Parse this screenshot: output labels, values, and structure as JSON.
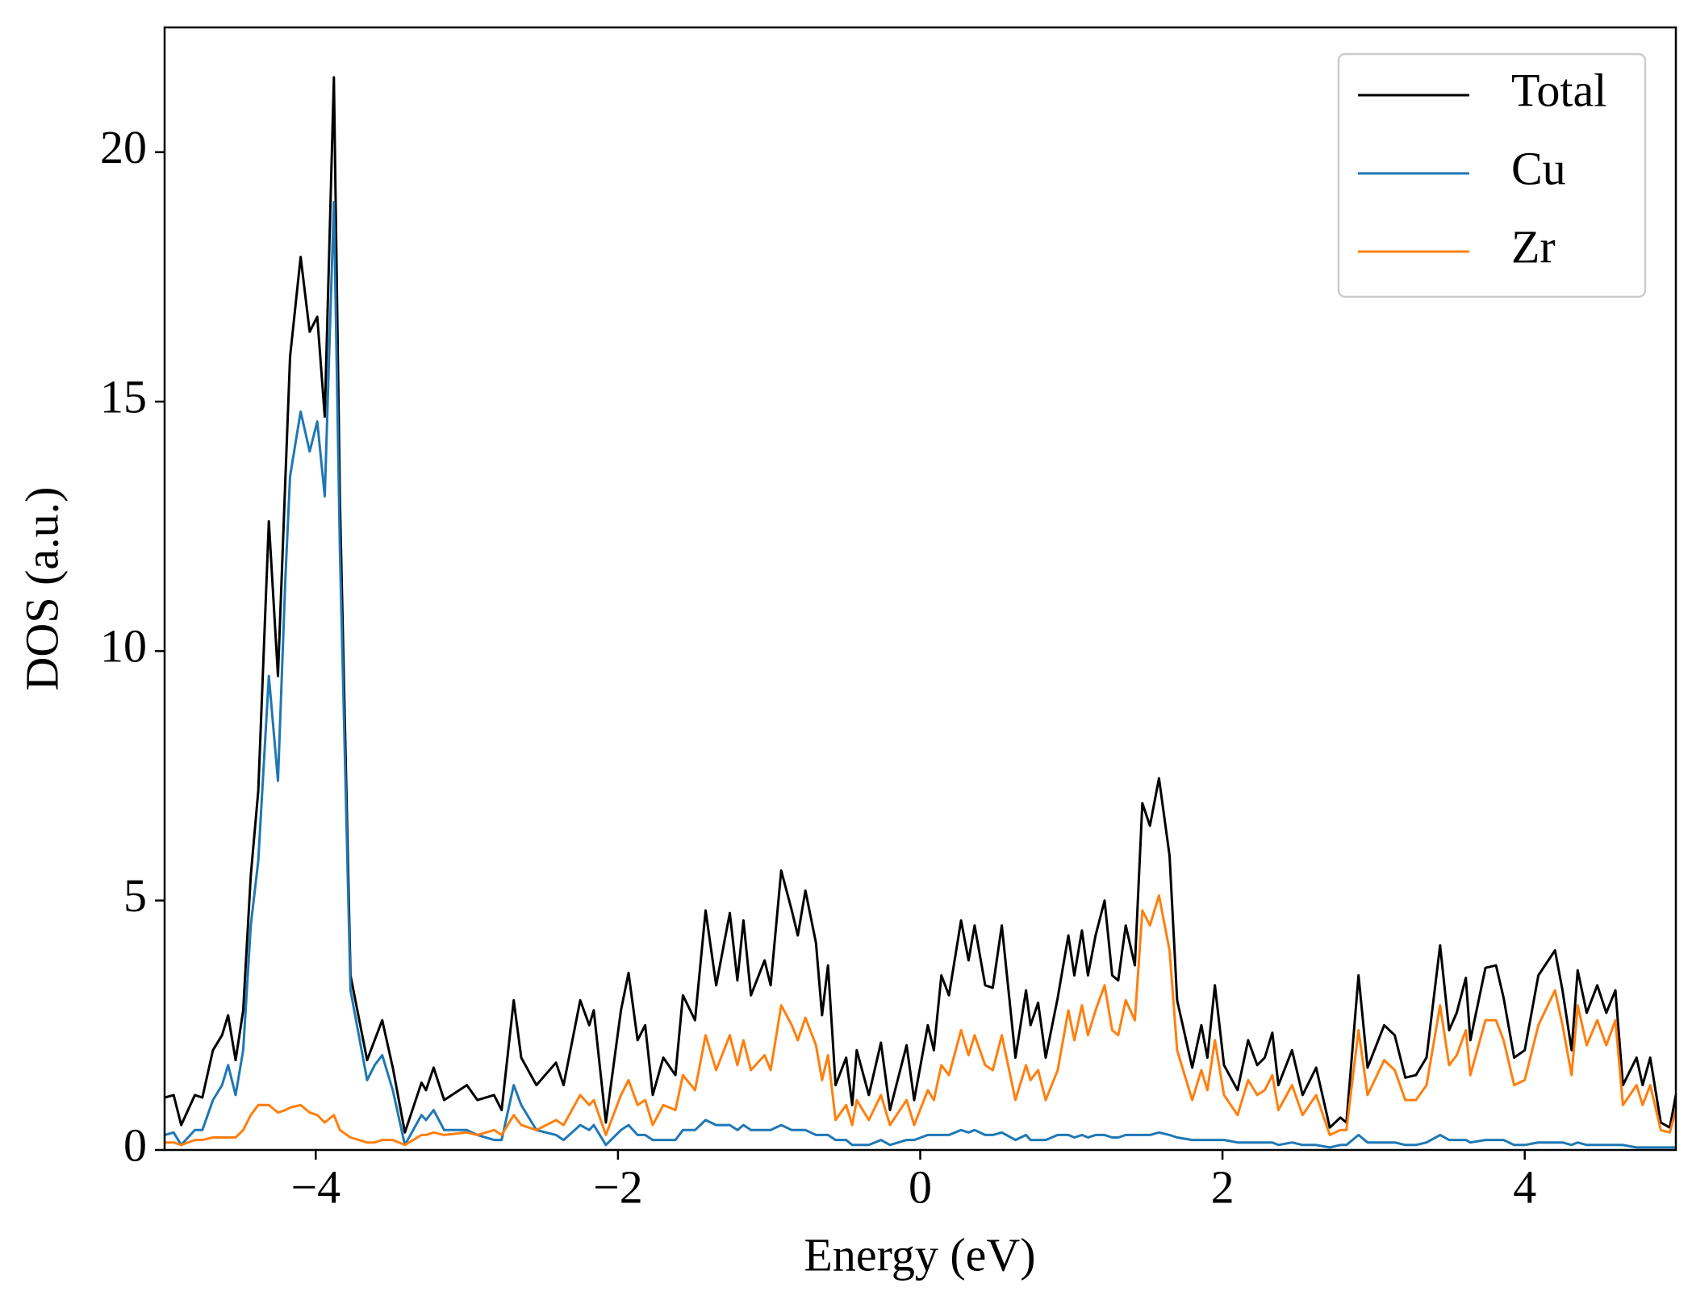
{
  "chart_data": {
    "type": "line",
    "xlabel": "Energy (eV)",
    "ylabel": "DOS (a.u.)",
    "x": [
      -5.0,
      -4.94,
      -4.89,
      -4.8,
      -4.75,
      -4.68,
      -4.62,
      -4.58,
      -4.53,
      -4.48,
      -4.43,
      -4.38,
      -4.31,
      -4.25,
      -4.2,
      -4.17,
      -4.1,
      -4.04,
      -3.99,
      -3.94,
      -3.88,
      -3.84,
      -3.77,
      -3.66,
      -3.61,
      -3.56,
      -3.49,
      -3.41,
      -3.3,
      -3.27,
      -3.22,
      -3.15,
      -3.0,
      -2.93,
      -2.82,
      -2.77,
      -2.69,
      -2.64,
      -2.54,
      -2.41,
      -2.36,
      -2.25,
      -2.19,
      -2.16,
      -2.08,
      -1.98,
      -1.93,
      -1.87,
      -1.82,
      -1.77,
      -1.7,
      -1.62,
      -1.57,
      -1.49,
      -1.42,
      -1.35,
      -1.26,
      -1.21,
      -1.17,
      -1.12,
      -1.03,
      -0.99,
      -0.92,
      -0.85,
      -0.81,
      -0.76,
      -0.69,
      -0.65,
      -0.61,
      -0.56,
      -0.49,
      -0.45,
      -0.42,
      -0.34,
      -0.26,
      -0.2,
      -0.09,
      -0.04,
      0.05,
      0.09,
      0.14,
      0.19,
      0.27,
      0.32,
      0.36,
      0.43,
      0.48,
      0.54,
      0.63,
      0.7,
      0.73,
      0.78,
      0.83,
      0.91,
      0.98,
      1.02,
      1.07,
      1.11,
      1.16,
      1.22,
      1.27,
      1.31,
      1.36,
      1.42,
      1.47,
      1.52,
      1.58,
      1.65,
      1.7,
      1.8,
      1.86,
      1.9,
      1.95,
      2.01,
      2.1,
      2.17,
      2.23,
      2.28,
      2.33,
      2.37,
      2.46,
      2.53,
      2.62,
      2.71,
      2.78,
      2.82,
      2.9,
      2.96,
      3.07,
      3.14,
      3.21,
      3.28,
      3.35,
      3.44,
      3.5,
      3.55,
      3.61,
      3.64,
      3.74,
      3.81,
      3.86,
      3.93,
      4.0,
      4.09,
      4.2,
      4.25,
      4.31,
      4.35,
      4.41,
      4.48,
      4.54,
      4.6,
      4.65,
      4.74,
      4.78,
      4.83,
      4.9,
      4.96,
      5.0
    ],
    "series": [
      {
        "name": "Total",
        "color": "#000000",
        "values": [
          1.05,
          1.1,
          0.5,
          1.1,
          1.05,
          2.0,
          2.3,
          2.7,
          1.8,
          2.8,
          5.5,
          7.2,
          12.6,
          9.5,
          13.5,
          15.9,
          17.9,
          16.4,
          16.7,
          14.7,
          21.5,
          13.0,
          3.5,
          1.8,
          2.2,
          2.6,
          1.65,
          0.35,
          1.35,
          1.2,
          1.65,
          1.0,
          1.3,
          1.0,
          1.1,
          0.8,
          3.0,
          1.85,
          1.3,
          1.75,
          1.3,
          3.0,
          2.5,
          2.8,
          0.55,
          2.8,
          3.55,
          2.2,
          2.5,
          1.1,
          1.85,
          1.5,
          3.1,
          2.6,
          4.8,
          3.3,
          4.75,
          3.4,
          4.6,
          3.1,
          3.8,
          3.3,
          5.6,
          4.8,
          4.3,
          5.2,
          4.15,
          2.7,
          3.7,
          1.3,
          1.85,
          0.9,
          2.0,
          1.1,
          2.15,
          0.8,
          2.1,
          1.0,
          2.5,
          2.0,
          3.5,
          3.1,
          4.6,
          3.8,
          4.5,
          3.3,
          3.25,
          4.5,
          1.85,
          3.2,
          2.5,
          2.95,
          1.85,
          3.05,
          4.3,
          3.5,
          4.4,
          3.5,
          4.3,
          5.0,
          3.5,
          3.4,
          4.5,
          3.7,
          6.95,
          6.5,
          7.45,
          5.9,
          3.0,
          1.65,
          2.5,
          1.85,
          3.3,
          1.7,
          1.2,
          2.2,
          1.7,
          1.85,
          2.35,
          1.3,
          2.0,
          1.1,
          1.65,
          0.45,
          0.65,
          0.55,
          3.5,
          1.65,
          2.5,
          2.3,
          1.45,
          1.5,
          1.85,
          4.1,
          2.4,
          2.75,
          3.45,
          2.2,
          3.65,
          3.7,
          3.05,
          1.85,
          2.0,
          3.5,
          4.0,
          3.2,
          2.0,
          3.6,
          2.75,
          3.3,
          2.75,
          3.2,
          1.3,
          1.85,
          1.3,
          1.85,
          0.55,
          0.45,
          1.1
        ]
      },
      {
        "name": "Cu",
        "color": "#1f77b4",
        "values": [
          0.3,
          0.35,
          0.1,
          0.4,
          0.4,
          1.0,
          1.3,
          1.7,
          1.1,
          2.0,
          4.5,
          5.8,
          9.5,
          7.4,
          11.5,
          13.5,
          14.8,
          14.0,
          14.6,
          13.1,
          19.0,
          12.0,
          3.2,
          1.4,
          1.7,
          1.9,
          1.2,
          0.1,
          0.7,
          0.6,
          0.8,
          0.4,
          0.4,
          0.3,
          0.2,
          0.2,
          1.3,
          0.9,
          0.4,
          0.3,
          0.2,
          0.5,
          0.4,
          0.5,
          0.1,
          0.4,
          0.5,
          0.3,
          0.3,
          0.2,
          0.2,
          0.2,
          0.4,
          0.4,
          0.6,
          0.5,
          0.5,
          0.4,
          0.5,
          0.4,
          0.4,
          0.4,
          0.5,
          0.4,
          0.4,
          0.4,
          0.3,
          0.3,
          0.3,
          0.2,
          0.2,
          0.1,
          0.1,
          0.1,
          0.2,
          0.1,
          0.2,
          0.2,
          0.3,
          0.3,
          0.3,
          0.3,
          0.4,
          0.35,
          0.4,
          0.3,
          0.3,
          0.35,
          0.2,
          0.3,
          0.2,
          0.2,
          0.2,
          0.3,
          0.3,
          0.25,
          0.3,
          0.25,
          0.3,
          0.3,
          0.25,
          0.25,
          0.3,
          0.3,
          0.3,
          0.3,
          0.35,
          0.3,
          0.25,
          0.2,
          0.2,
          0.2,
          0.2,
          0.2,
          0.15,
          0.15,
          0.15,
          0.15,
          0.15,
          0.1,
          0.15,
          0.1,
          0.1,
          0.05,
          0.1,
          0.1,
          0.3,
          0.15,
          0.15,
          0.15,
          0.1,
          0.1,
          0.15,
          0.3,
          0.2,
          0.2,
          0.2,
          0.15,
          0.2,
          0.2,
          0.2,
          0.1,
          0.1,
          0.15,
          0.15,
          0.15,
          0.1,
          0.15,
          0.1,
          0.1,
          0.1,
          0.1,
          0.1,
          0.05,
          0.05,
          0.05,
          0.05,
          0.05,
          0.05
        ]
      },
      {
        "name": "Zr",
        "color": "#ff7f0e",
        "values": [
          0.15,
          0.15,
          0.1,
          0.2,
          0.2,
          0.25,
          0.25,
          0.25,
          0.25,
          0.4,
          0.7,
          0.9,
          0.9,
          0.75,
          0.8,
          0.85,
          0.9,
          0.75,
          0.7,
          0.55,
          0.7,
          0.4,
          0.25,
          0.15,
          0.15,
          0.2,
          0.2,
          0.1,
          0.3,
          0.3,
          0.35,
          0.3,
          0.35,
          0.3,
          0.4,
          0.3,
          0.7,
          0.5,
          0.4,
          0.6,
          0.5,
          1.1,
          0.9,
          1.0,
          0.3,
          1.1,
          1.4,
          0.9,
          1.0,
          0.5,
          0.9,
          0.8,
          1.5,
          1.2,
          2.3,
          1.6,
          2.3,
          1.7,
          2.2,
          1.6,
          1.9,
          1.6,
          2.9,
          2.5,
          2.2,
          2.65,
          2.1,
          1.4,
          1.9,
          0.6,
          0.9,
          0.5,
          1.0,
          0.6,
          1.1,
          0.5,
          1.0,
          0.5,
          1.2,
          1.0,
          1.7,
          1.5,
          2.4,
          1.9,
          2.3,
          1.7,
          1.6,
          2.3,
          1.0,
          1.7,
          1.4,
          1.6,
          1.0,
          1.6,
          2.8,
          2.2,
          2.9,
          2.3,
          2.8,
          3.3,
          2.4,
          2.3,
          3.0,
          2.6,
          4.8,
          4.5,
          5.1,
          4.0,
          2.0,
          1.0,
          1.6,
          1.2,
          2.2,
          1.1,
          0.7,
          1.4,
          1.1,
          1.2,
          1.5,
          0.8,
          1.3,
          0.7,
          1.1,
          0.3,
          0.4,
          0.4,
          2.4,
          1.1,
          1.8,
          1.6,
          1.0,
          1.0,
          1.3,
          2.9,
          1.7,
          1.9,
          2.4,
          1.5,
          2.6,
          2.6,
          2.2,
          1.3,
          1.4,
          2.5,
          3.2,
          2.5,
          1.5,
          2.9,
          2.1,
          2.6,
          2.1,
          2.6,
          0.9,
          1.3,
          0.9,
          1.3,
          0.4,
          0.35,
          0.8
        ]
      }
    ],
    "xlim": [
      -5,
      5
    ],
    "xticks": [
      {
        "value": -4,
        "label": "−4"
      },
      {
        "value": -2,
        "label": "−2"
      },
      0,
      2,
      4
    ],
    "ylim": [
      0,
      22.5
    ],
    "yticks": [
      0,
      5,
      10,
      15,
      20
    ],
    "legend": "upper right",
    "grid": false
  }
}
